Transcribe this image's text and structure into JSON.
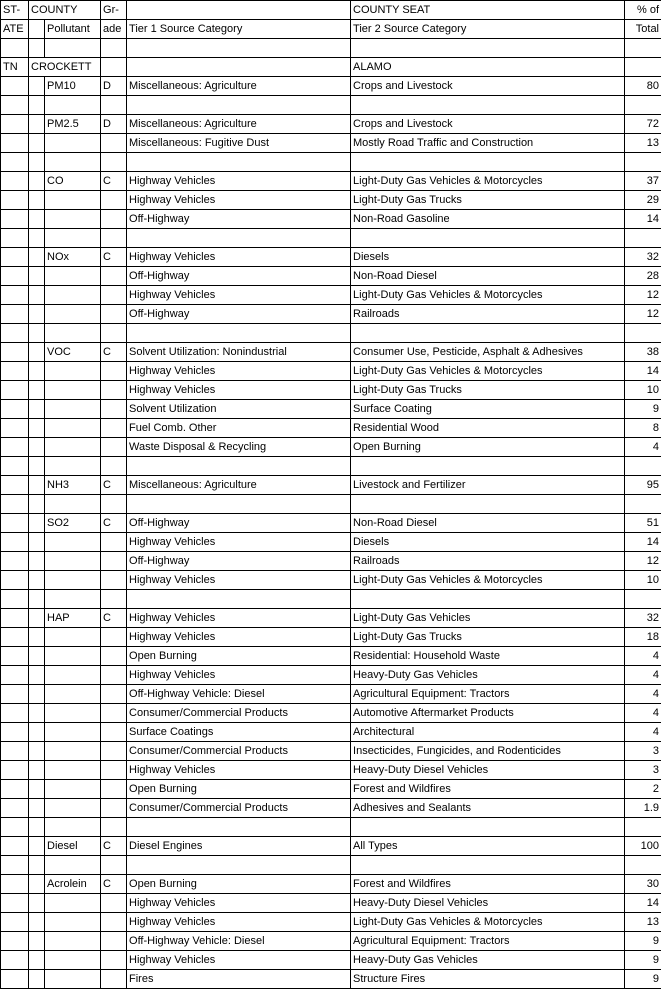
{
  "colors": {
    "text": "#000000",
    "border": "#000000",
    "background": "#ffffff"
  },
  "fontsize": 11,
  "header": {
    "r1": {
      "state": "ST-",
      "county": "COUNTY",
      "grade": "Gr-",
      "seat": "COUNTY SEAT",
      "pct": "% of"
    },
    "r2": {
      "state": "ATE",
      "pollutant": "Pollutant",
      "grade": "ade",
      "tier1": "Tier 1 Source Category",
      "tier2": "Tier 2 Source Category",
      "pct": "Total"
    }
  },
  "state": "TN",
  "county": "CROCKETT",
  "seat": "ALAMO",
  "groups": [
    {
      "pollutant": "PM10",
      "grade": "D",
      "rows": [
        {
          "t1": "Miscellaneous: Agriculture",
          "t2": "Crops and Livestock",
          "pct": "80"
        }
      ]
    },
    {
      "pollutant": "PM2.5",
      "grade": "D",
      "rows": [
        {
          "t1": "Miscellaneous: Agriculture",
          "t2": "Crops and Livestock",
          "pct": "72"
        },
        {
          "t1": "Miscellaneous: Fugitive Dust",
          "t2": "Mostly Road Traffic and Construction",
          "pct": "13"
        }
      ]
    },
    {
      "pollutant": "CO",
      "grade": "C",
      "rows": [
        {
          "t1": "Highway Vehicles",
          "t2": "Light-Duty Gas Vehicles & Motorcycles",
          "pct": "37"
        },
        {
          "t1": "Highway Vehicles",
          "t2": "Light-Duty Gas Trucks",
          "pct": "29"
        },
        {
          "t1": "Off-Highway",
          "t2": "Non-Road Gasoline",
          "pct": "14"
        }
      ]
    },
    {
      "pollutant": "NOx",
      "grade": "C",
      "rows": [
        {
          "t1": "Highway Vehicles",
          "t2": "Diesels",
          "pct": "32"
        },
        {
          "t1": "Off-Highway",
          "t2": "Non-Road Diesel",
          "pct": "28"
        },
        {
          "t1": "Highway Vehicles",
          "t2": "Light-Duty Gas Vehicles & Motorcycles",
          "pct": "12"
        },
        {
          "t1": "Off-Highway",
          "t2": "Railroads",
          "pct": "12"
        }
      ]
    },
    {
      "pollutant": "VOC",
      "grade": "C",
      "rows": [
        {
          "t1": "Solvent Utilization: Nonindustrial",
          "t2": "Consumer Use, Pesticide, Asphalt & Adhesives",
          "pct": "38"
        },
        {
          "t1": "Highway Vehicles",
          "t2": "Light-Duty Gas Vehicles & Motorcycles",
          "pct": "14"
        },
        {
          "t1": "Highway Vehicles",
          "t2": "Light-Duty Gas Trucks",
          "pct": "10"
        },
        {
          "t1": "Solvent Utilization",
          "t2": "Surface Coating",
          "pct": "9"
        },
        {
          "t1": "Fuel Comb. Other",
          "t2": "Residential Wood",
          "pct": "8"
        },
        {
          "t1": "Waste Disposal & Recycling",
          "t2": "Open Burning",
          "pct": "4"
        }
      ]
    },
    {
      "pollutant": "NH3",
      "grade": "C",
      "rows": [
        {
          "t1": "Miscellaneous: Agriculture",
          "t2": "Livestock and Fertilizer",
          "pct": "95"
        }
      ]
    },
    {
      "pollutant": "SO2",
      "grade": "C",
      "rows": [
        {
          "t1": "Off-Highway",
          "t2": "Non-Road Diesel",
          "pct": "51"
        },
        {
          "t1": "Highway Vehicles",
          "t2": "Diesels",
          "pct": "14"
        },
        {
          "t1": "Off-Highway",
          "t2": "Railroads",
          "pct": "12"
        },
        {
          "t1": "Highway Vehicles",
          "t2": "Light-Duty Gas Vehicles & Motorcycles",
          "pct": "10"
        }
      ]
    },
    {
      "pollutant": "HAP",
      "grade": "C",
      "rows": [
        {
          "t1": "Highway Vehicles",
          "t2": "Light-Duty Gas Vehicles",
          "pct": "32"
        },
        {
          "t1": "Highway Vehicles",
          "t2": "Light-Duty Gas Trucks",
          "pct": "18"
        },
        {
          "t1": "Open Burning",
          "t2": "Residential: Household Waste",
          "pct": "4"
        },
        {
          "t1": "Highway Vehicles",
          "t2": "Heavy-Duty Gas Vehicles",
          "pct": "4"
        },
        {
          "t1": "Off-Highway Vehicle: Diesel",
          "t2": "Agricultural Equipment: Tractors",
          "pct": "4"
        },
        {
          "t1": "Consumer/Commercial Products",
          "t2": "Automotive Aftermarket Products",
          "pct": "4"
        },
        {
          "t1": "Surface Coatings",
          "t2": "Architectural",
          "pct": "4"
        },
        {
          "t1": "Consumer/Commercial Products",
          "t2": "Insecticides, Fungicides, and Rodenticides",
          "pct": "3"
        },
        {
          "t1": "Highway Vehicles",
          "t2": "Heavy-Duty Diesel Vehicles",
          "pct": "3"
        },
        {
          "t1": "Open Burning",
          "t2": "Forest and Wildfires",
          "pct": "2"
        },
        {
          "t1": "Consumer/Commercial Products",
          "t2": "Adhesives and Sealants",
          "pct": "1.9"
        }
      ]
    },
    {
      "pollutant": "Diesel",
      "grade": "C",
      "rows": [
        {
          "t1": "Diesel Engines",
          "t2": "All Types",
          "pct": "100"
        }
      ]
    },
    {
      "pollutant": "Acrolein",
      "grade": "C",
      "rows": [
        {
          "t1": "Open Burning",
          "t2": "Forest and Wildfires",
          "pct": "30"
        },
        {
          "t1": "Highway Vehicles",
          "t2": "Heavy-Duty Diesel Vehicles",
          "pct": "14"
        },
        {
          "t1": "Highway Vehicles",
          "t2": "Light-Duty Gas Vehicles & Motorcycles",
          "pct": "13"
        },
        {
          "t1": "Off-Highway Vehicle: Diesel",
          "t2": "Agricultural Equipment: Tractors",
          "pct": "9"
        },
        {
          "t1": "Highway Vehicles",
          "t2": "Heavy-Duty Gas Vehicles",
          "pct": "9"
        },
        {
          "t1": "Fires",
          "t2": "Structure Fires",
          "pct": "9"
        }
      ]
    }
  ]
}
